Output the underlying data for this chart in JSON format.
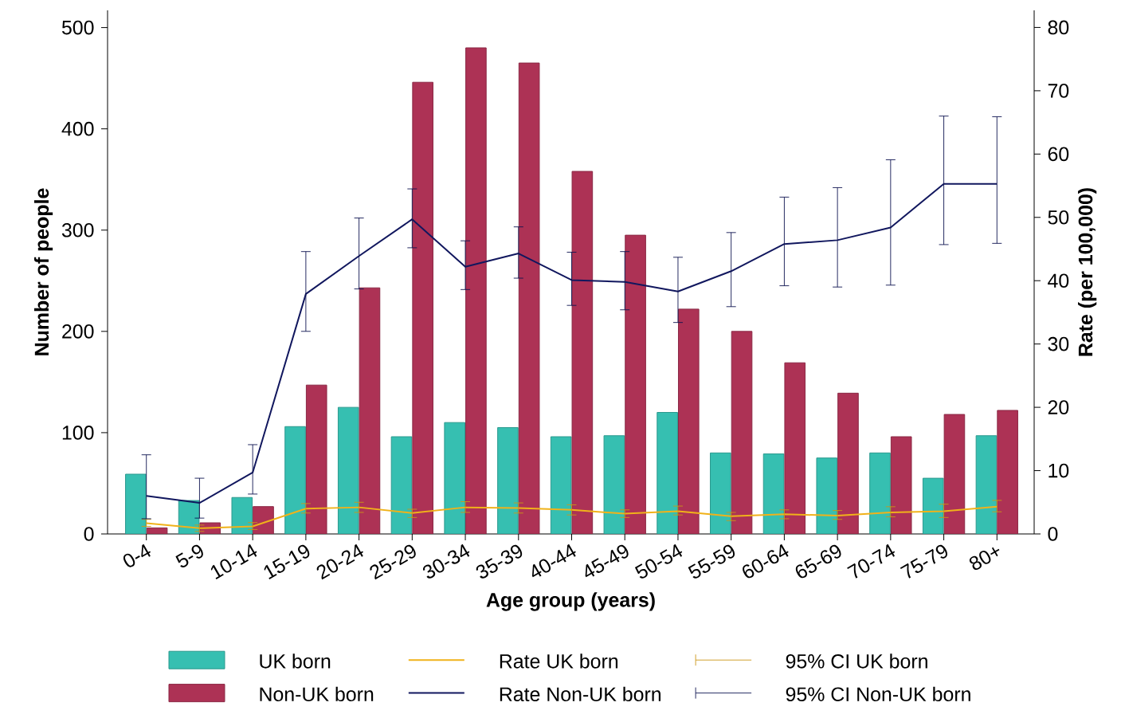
{
  "chart_data": {
    "type": "bar",
    "categories": [
      "0-4",
      "5-9",
      "10-14",
      "15-19",
      "20-24",
      "25-29",
      "30-34",
      "35-39",
      "40-44",
      "45-49",
      "50-54",
      "55-59",
      "60-64",
      "65-69",
      "70-74",
      "75-79",
      "80+"
    ],
    "xlabel": "Age group (years)",
    "ylabel": "Number of people",
    "y2label": "Rate (per 100,000)",
    "ylim": [
      0,
      517
    ],
    "yticks": [
      0,
      100,
      200,
      300,
      400,
      500
    ],
    "y2lim": [
      0,
      82.7
    ],
    "y2ticks": [
      0,
      10,
      20,
      30,
      40,
      50,
      60,
      70,
      80
    ],
    "legend": "bottom",
    "annotations": [
      "95% CI UK born",
      "95% CI Non-UK born"
    ],
    "series": [
      {
        "name": "UK born",
        "color": "#36bfb1",
        "values": [
          59,
          33,
          36,
          106,
          125,
          96,
          110,
          105,
          96,
          97,
          120,
          80,
          79,
          75,
          80,
          55,
          97
        ]
      },
      {
        "name": "Non-UK born",
        "color": "#ad3255",
        "values": [
          6,
          11,
          27,
          147,
          243,
          446,
          480,
          465,
          358,
          295,
          222,
          200,
          169,
          139,
          96,
          118,
          122
        ]
      },
      {
        "name": "Rate UK born",
        "type": "line",
        "axis": "y2",
        "color": "#f0b21a",
        "values": [
          1.7,
          0.9,
          1.2,
          4.0,
          4.2,
          3.3,
          4.2,
          4.1,
          3.8,
          3.2,
          3.6,
          2.8,
          3.1,
          2.9,
          3.4,
          3.6,
          4.3
        ],
        "errors": [
          [
            1.2,
            2.3
          ],
          [
            0.4,
            1.4
          ],
          [
            0.7,
            1.8
          ],
          [
            3.3,
            4.8
          ],
          [
            3.4,
            5.0
          ],
          [
            2.6,
            3.9
          ],
          [
            3.4,
            5.1
          ],
          [
            3.3,
            4.9
          ],
          [
            3.0,
            4.6
          ],
          [
            2.6,
            3.8
          ],
          [
            3.0,
            4.4
          ],
          [
            2.1,
            3.4
          ],
          [
            2.4,
            3.8
          ],
          [
            2.3,
            3.7
          ],
          [
            2.7,
            4.3
          ],
          [
            2.6,
            4.7
          ],
          [
            3.5,
            5.3
          ]
        ]
      },
      {
        "name": "Rate Non-UK born",
        "type": "line",
        "axis": "y2",
        "color": "#11175e",
        "values": [
          6.0,
          4.9,
          9.7,
          37.9,
          43.9,
          49.7,
          42.2,
          44.3,
          40.1,
          39.8,
          38.3,
          41.5,
          45.8,
          46.4,
          48.4,
          55.3,
          55.3
        ],
        "errors": [
          [
            2.4,
            12.5
          ],
          [
            2.5,
            8.8
          ],
          [
            6.3,
            14.1
          ],
          [
            32.0,
            44.6
          ],
          [
            38.7,
            49.9
          ],
          [
            45.2,
            54.5
          ],
          [
            38.6,
            46.3
          ],
          [
            40.4,
            48.5
          ],
          [
            36.1,
            44.5
          ],
          [
            35.4,
            44.6
          ],
          [
            33.4,
            43.7
          ],
          [
            35.9,
            47.6
          ],
          [
            39.2,
            53.2
          ],
          [
            39.0,
            54.7
          ],
          [
            39.3,
            59.1
          ],
          [
            45.7,
            66.0
          ],
          [
            45.9,
            65.9
          ]
        ]
      }
    ]
  }
}
